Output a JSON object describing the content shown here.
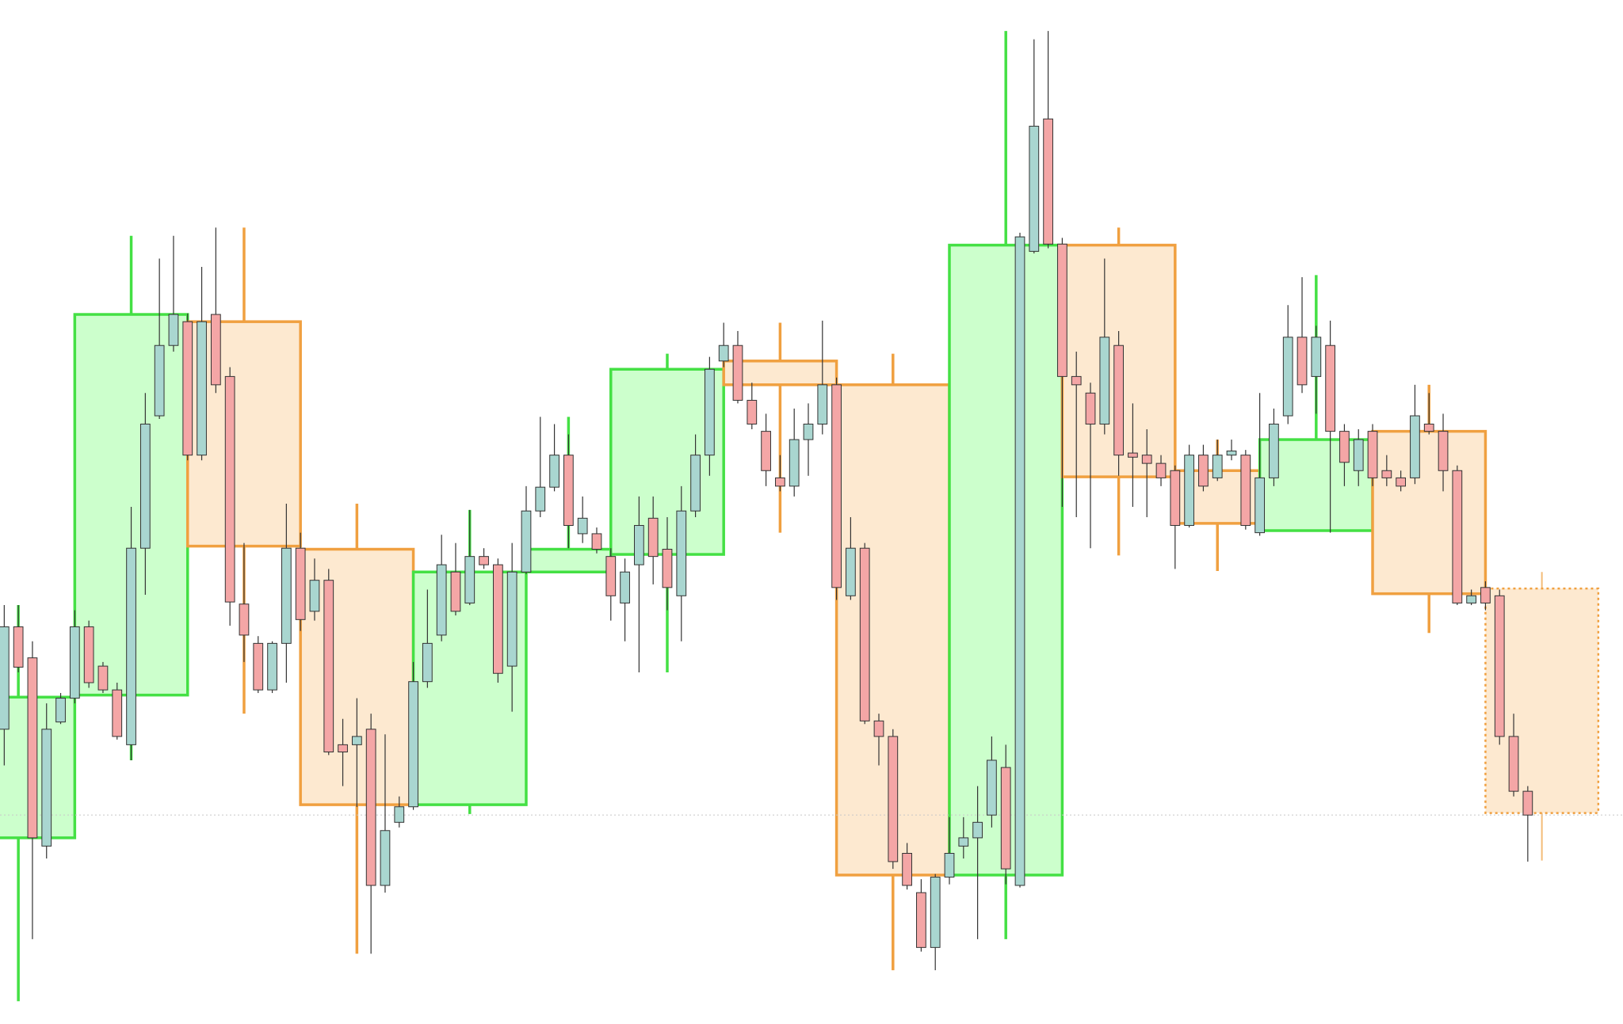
{
  "chart_data": {
    "type": "candlestick",
    "xlim": [
      -0.3,
      114.75
    ],
    "ylim": [
      10,
      1000
    ],
    "candles": {
      "up_color": "#a9d6d0",
      "down_color": "#f4a6a6",
      "outline_color": "#333333",
      "open": [
        295,
        394,
        364,
        182,
        302,
        325,
        394,
        356,
        333,
        280,
        470,
        598,
        666,
        689,
        560,
        696,
        636,
        416,
        378,
        333,
        378,
        470,
        409,
        439,
        280,
        280,
        295,
        144,
        205,
        220,
        341,
        386,
        447,
        417,
        462,
        454,
        356,
        447,
        506,
        529,
        560,
        484,
        484,
        462,
        417,
        454,
        499,
        469,
        424,
        506,
        560,
        651,
        666,
        613,
        583,
        538,
        530,
        575,
        590,
        628,
        424,
        470,
        303,
        288,
        175,
        137,
        84,
        152,
        182,
        190,
        212,
        258,
        144,
        757,
        885,
        764,
        636,
        620,
        590,
        666,
        562,
        560,
        552,
        545,
        492,
        560,
        538,
        560,
        560,
        485,
        538,
        598,
        674,
        636,
        666,
        583,
        545,
        583,
        545,
        538,
        538,
        590,
        583,
        545,
        417,
        432,
        424,
        288,
        235
      ],
      "high": [
        415,
        415,
        380,
        320,
        330,
        410,
        400,
        360,
        340,
        510,
        620,
        750,
        772,
        697,
        742,
        780,
        645,
        475,
        385,
        380,
        513,
        485,
        460,
        450,
        305,
        325,
        310,
        290,
        230,
        360,
        430,
        483,
        475,
        507,
        470,
        460,
        475,
        530,
        597,
        590,
        580,
        520,
        490,
        470,
        460,
        520,
        520,
        500,
        530,
        580,
        655,
        688,
        680,
        630,
        600,
        560,
        605,
        610,
        690,
        635,
        500,
        475,
        310,
        295,
        185,
        150,
        155,
        210,
        210,
        240,
        288,
        280,
        775,
        962,
        970,
        770,
        660,
        630,
        750,
        680,
        610,
        585,
        560,
        550,
        570,
        570,
        575,
        575,
        565,
        620,
        605,
        705,
        732,
        685,
        690,
        590,
        585,
        590,
        560,
        545,
        628,
        620,
        600,
        550,
        430,
        438,
        430,
        310,
        240
      ],
      "low": [
        260,
        350,
        92,
        170,
        300,
        320,
        335,
        330,
        285,
        265,
        425,
        595,
        660,
        555,
        555,
        620,
        395,
        360,
        330,
        330,
        340,
        390,
        400,
        270,
        240,
        220,
        78,
        137,
        200,
        217,
        335,
        380,
        405,
        415,
        450,
        340,
        312,
        445,
        500,
        525,
        470,
        475,
        465,
        400,
        380,
        350,
        435,
        410,
        380,
        500,
        540,
        645,
        610,
        585,
        530,
        525,
        520,
        540,
        580,
        420,
        420,
        300,
        260,
        160,
        140,
        80,
        62,
        145,
        170,
        92,
        200,
        145,
        142,
        755,
        760,
        510,
        500,
        470,
        580,
        540,
        510,
        500,
        530,
        450,
        490,
        525,
        535,
        555,
        488,
        482,
        530,
        590,
        620,
        600,
        485,
        530,
        530,
        530,
        530,
        525,
        532,
        580,
        525,
        415,
        415,
        410,
        280,
        230,
        167
      ],
      "close": [
        394,
        355,
        190,
        295,
        325,
        394,
        340,
        333,
        288,
        470,
        590,
        666,
        696,
        560,
        689,
        628,
        418,
        386,
        333,
        378,
        470,
        401,
        439,
        273,
        273,
        288,
        144,
        197,
        220,
        341,
        378,
        454,
        409,
        462,
        454,
        349,
        447,
        506,
        529,
        560,
        492,
        499,
        469,
        424,
        447,
        492,
        462,
        432,
        506,
        560,
        643,
        666,
        613,
        590,
        545,
        530,
        575,
        590,
        628,
        432,
        470,
        303,
        288,
        167,
        144,
        84,
        152,
        175,
        190,
        205,
        265,
        160,
        771,
        878,
        764,
        636,
        628,
        590,
        674,
        560,
        558,
        552,
        538,
        492,
        560,
        530,
        560,
        564,
        492,
        538,
        590,
        674,
        628,
        674,
        583,
        553,
        575,
        538,
        538,
        530,
        598,
        583,
        545,
        417,
        424,
        417,
        288,
        235,
        212
      ]
    },
    "htf": {
      "up_color": "#44e044",
      "up_fill": "#ccffcc",
      "down_color": "#f0a040",
      "down_fill": "#fde9d0",
      "last_dashed": true,
      "start": [
        -3,
        5,
        13,
        21,
        29,
        37,
        43,
        51,
        59,
        67,
        75,
        83,
        89,
        97,
        105
      ],
      "end": [
        5,
        13,
        21,
        29,
        37,
        43,
        51,
        59,
        67,
        75,
        83,
        89,
        97,
        105,
        113
      ],
      "open": [
        190,
        328,
        689,
        469,
        222,
        447,
        464,
        651,
        628,
        154,
        763,
        545,
        487,
        583,
        431
      ],
      "high": [
        415,
        772,
        780,
        513,
        507,
        597,
        658,
        688,
        658,
        970,
        780,
        575,
        734,
        628,
        447
      ],
      "low": [
        32,
        265,
        310,
        78,
        213,
        447,
        350,
        485,
        62,
        92,
        463,
        448,
        487,
        388,
        168
      ],
      "close": [
        326,
        696,
        472,
        222,
        447,
        469,
        643,
        628,
        154,
        763,
        539,
        494,
        575,
        426,
        214
      ]
    },
    "last_price_line": true,
    "last_price_line_color": "#c8c8c8"
  }
}
